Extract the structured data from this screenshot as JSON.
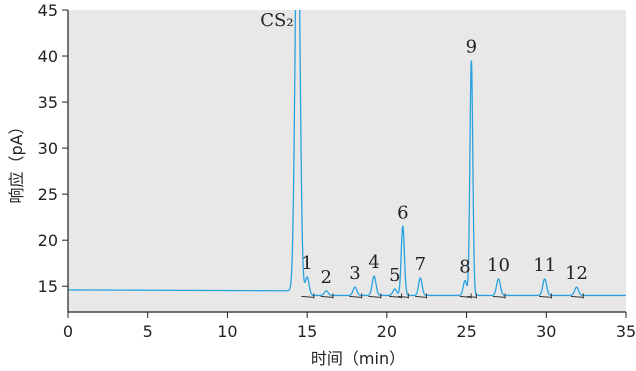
{
  "chart_data": {
    "type": "line",
    "xlabel": "时间（min）",
    "ylabel": "响应（pA）",
    "xlim": [
      0,
      35
    ],
    "ylim": [
      12.2,
      45
    ],
    "x_ticks": [
      0,
      5,
      10,
      15,
      20,
      25,
      30,
      35
    ],
    "y_ticks": [
      15,
      20,
      25,
      30,
      35,
      40,
      45
    ],
    "grid": false,
    "colors": {
      "plot_background": "#e8e8e8",
      "trace": "#29a3e0",
      "integration_marks": "#333333"
    },
    "baseline": [
      {
        "x": 0.0,
        "y": 14.6
      },
      {
        "x": 14.2,
        "y": 14.5
      },
      {
        "x": 14.6,
        "y": 14.0
      },
      {
        "x": 35.0,
        "y": 14.0
      }
    ],
    "peaks": [
      {
        "label": "CS₂",
        "x": 14.4,
        "y": 60.0,
        "width": 0.15
      },
      {
        "label": "1",
        "x": 15.0,
        "y": 16.0,
        "width": 0.12
      },
      {
        "label": "2",
        "x": 16.2,
        "y": 14.5,
        "width": 0.12
      },
      {
        "label": "3",
        "x": 18.0,
        "y": 14.9,
        "width": 0.12
      },
      {
        "label": "4",
        "x": 19.2,
        "y": 16.1,
        "width": 0.12
      },
      {
        "label": "5",
        "x": 20.5,
        "y": 14.7,
        "width": 0.12
      },
      {
        "label": "6",
        "x": 21.0,
        "y": 21.5,
        "width": 0.1
      },
      {
        "label": "7",
        "x": 22.1,
        "y": 15.9,
        "width": 0.11
      },
      {
        "label": "8",
        "x": 24.9,
        "y": 15.6,
        "width": 0.11
      },
      {
        "label": "9",
        "x": 25.3,
        "y": 39.5,
        "width": 0.09
      },
      {
        "label": "10",
        "x": 27.0,
        "y": 15.8,
        "width": 0.12
      },
      {
        "label": "11",
        "x": 29.9,
        "y": 15.8,
        "width": 0.12
      },
      {
        "label": "12",
        "x": 31.9,
        "y": 14.9,
        "width": 0.12
      }
    ]
  }
}
